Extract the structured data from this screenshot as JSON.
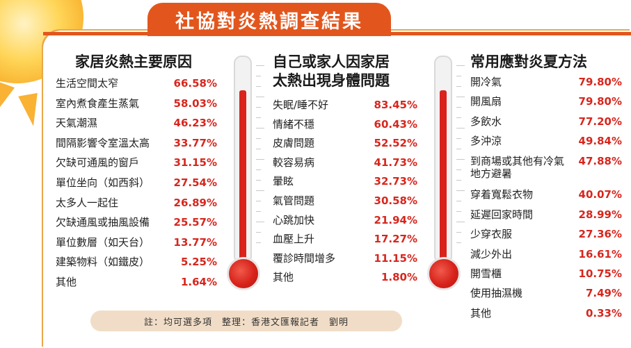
{
  "chart_data": {
    "type": "table",
    "title": "社協對炎熱調查結果",
    "columns": [
      {
        "heading": [
          "家居炎熱主要原因"
        ],
        "rows": [
          {
            "label": "生活空間太窄",
            "value": "66.58%"
          },
          {
            "label": "室內煮食產生蒸氣",
            "value": "58.03%"
          },
          {
            "label": "天氣潮濕",
            "value": "46.23%"
          },
          {
            "label": "間隔影響令室溫太高",
            "value": "33.77%"
          },
          {
            "label": "欠缺可通風的窗戶",
            "value": "31.15%"
          },
          {
            "label": "單位坐向（如西斜）",
            "value": "27.54%"
          },
          {
            "label": "太多人一起住",
            "value": "26.89%"
          },
          {
            "label": "欠缺通風或抽風設備",
            "value": "25.57%"
          },
          {
            "label": "單位數層（如天台）",
            "value": "13.77%"
          },
          {
            "label": "建築物料（如鐵皮）",
            "value": "5.25%"
          },
          {
            "label": "其他",
            "value": "1.64%"
          }
        ]
      },
      {
        "heading": [
          "自己或家人因家居",
          "太熱出現身體問題"
        ],
        "rows": [
          {
            "label": "失眠/睡不好",
            "value": "83.45%"
          },
          {
            "label": "情緒不穩",
            "value": "60.43%"
          },
          {
            "label": "皮膚問題",
            "value": "52.52%"
          },
          {
            "label": "較容易病",
            "value": "41.73%"
          },
          {
            "label": "暈眩",
            "value": "32.73%"
          },
          {
            "label": "氣管問題",
            "value": "30.58%"
          },
          {
            "label": "心跳加快",
            "value": "21.94%"
          },
          {
            "label": "血壓上升",
            "value": "17.27%"
          },
          {
            "label": "覆診時間增多",
            "value": "11.15%"
          },
          {
            "label": "其他",
            "value": "1.80%"
          }
        ]
      },
      {
        "heading": [
          "常用應對炎夏方法"
        ],
        "rows": [
          {
            "label": [
              "開冷氣"
            ],
            "value": "79.80%"
          },
          {
            "label": [
              "開風扇"
            ],
            "value": "79.80%"
          },
          {
            "label": [
              "多飲水"
            ],
            "value": "77.20%"
          },
          {
            "label": [
              "多沖涼"
            ],
            "value": "49.84%"
          },
          {
            "label": [
              "到商場或其他有冷氣",
              "地方避暑"
            ],
            "value": "47.88%"
          },
          {
            "label": [
              "穿着寬鬆衣物"
            ],
            "value": "40.07%"
          },
          {
            "label": [
              "延遲回家時間"
            ],
            "value": "28.99%"
          },
          {
            "label": [
              "少穿衣服"
            ],
            "value": "27.36%"
          },
          {
            "label": [
              "減少外出"
            ],
            "value": "16.61%"
          },
          {
            "label": [
              "開雪櫃"
            ],
            "value": "10.75%"
          },
          {
            "label": [
              "使用抽濕機"
            ],
            "value": "7.49%"
          },
          {
            "label": [
              "其他"
            ],
            "value": "0.33%"
          }
        ]
      }
    ]
  },
  "footer_note": "註：均可選多項　整理：香港文匯報記者　劉明",
  "colors": {
    "accent": "#e2561d",
    "value_red": "#d7261d",
    "mercury": "#d9231b",
    "note_bg": "#f1ddc7"
  }
}
